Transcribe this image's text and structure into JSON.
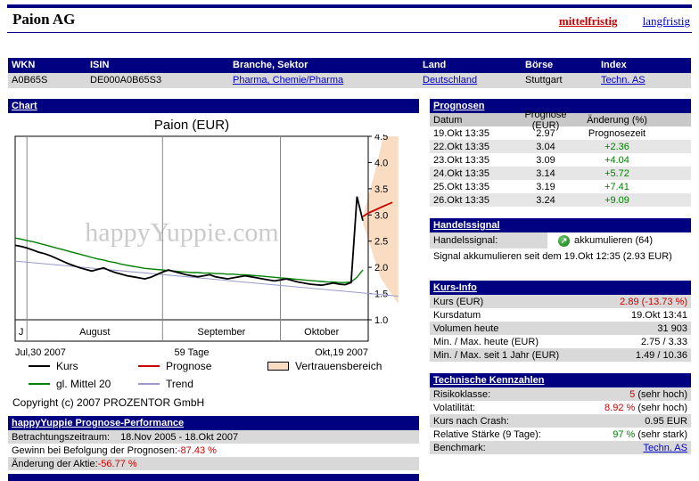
{
  "header": {
    "title": "Paion AG",
    "nav": [
      {
        "label": "mittelfristig",
        "active": true
      },
      {
        "label": "langfristig",
        "active": false
      }
    ]
  },
  "info_table": {
    "headers": [
      "WKN",
      "ISIN",
      "Branche, Sektor",
      "Land",
      "Börse",
      "Index"
    ],
    "values": [
      {
        "text": "A0B65S",
        "link": false
      },
      {
        "text": "DE000A0B65S3",
        "link": false
      },
      {
        "text": "Pharma, Chemie/Pharma",
        "link": true
      },
      {
        "text": "Deutschland",
        "link": true
      },
      {
        "text": "Stuttgart",
        "link": false
      },
      {
        "text": "Techn. AS",
        "link": true
      }
    ]
  },
  "chart_section": {
    "header": "Chart",
    "watermark": "happyYuppie.com",
    "copyright": "Copyright (c) 2007 PROZENTOR GmbH",
    "legend": [
      {
        "name": "Kurs",
        "type": "line",
        "color": "#000000"
      },
      {
        "name": "Prognose",
        "type": "line",
        "color": "#cc0000"
      },
      {
        "name": "Vertrauensbereich",
        "type": "box",
        "color": "#f9dcc2"
      },
      {
        "name": "gl. Mittel 20",
        "type": "line",
        "color": "#008000"
      },
      {
        "name": "Trend",
        "type": "line",
        "color": "#9999cc"
      }
    ]
  },
  "chart_data": {
    "type": "line",
    "title": "Paion (EUR)",
    "ylim": [
      1.0,
      4.5
    ],
    "yticks": [
      4.5,
      4.0,
      3.5,
      3.0,
      2.5,
      2.0,
      1.5,
      1.0
    ],
    "x_axis": {
      "start_label": "Jul,30 2007",
      "span_label": "59 Tage",
      "end_label": "Okt,19 2007",
      "visible_days": 59,
      "total_days": 65,
      "months": [
        {
          "label": "J",
          "start": 0,
          "end": 2
        },
        {
          "label": "August",
          "start": 2,
          "end": 25
        },
        {
          "label": "September",
          "start": 25,
          "end": 45
        },
        {
          "label": "Oktober",
          "start": 45,
          "end": 59
        }
      ]
    },
    "series": [
      {
        "name": "Trend",
        "color": "#9999cc",
        "width": 1,
        "x": [
          0,
          65
        ],
        "values": [
          2.12,
          1.45
        ]
      },
      {
        "name": "gl. Mittel 20",
        "color": "#008000",
        "width": 1.4,
        "values": [
          2.56,
          2.54,
          2.51,
          2.49,
          2.46,
          2.43,
          2.4,
          2.37,
          2.34,
          2.31,
          2.28,
          2.25,
          2.22,
          2.19,
          2.16,
          2.14,
          2.11,
          2.09,
          2.06,
          2.04,
          2.02,
          2.0,
          1.98,
          1.97,
          1.96,
          1.95,
          1.94,
          1.93,
          1.92,
          1.91,
          1.9,
          1.9,
          1.89,
          1.89,
          1.88,
          1.88,
          1.87,
          1.87,
          1.86,
          1.86,
          1.85,
          1.84,
          1.83,
          1.82,
          1.81,
          1.8,
          1.79,
          1.78,
          1.77,
          1.76,
          1.75,
          1.74,
          1.73,
          1.72,
          1.72,
          1.71,
          1.71,
          1.72,
          1.81,
          1.95
        ]
      },
      {
        "name": "Kurs",
        "color": "#000000",
        "width": 1.8,
        "values": [
          2.42,
          2.4,
          2.37,
          2.33,
          2.29,
          2.26,
          2.22,
          2.17,
          2.12,
          2.07,
          2.03,
          1.99,
          1.96,
          1.93,
          1.96,
          1.99,
          1.94,
          1.9,
          1.87,
          1.84,
          1.82,
          1.8,
          1.78,
          1.81,
          1.86,
          1.91,
          1.95,
          1.92,
          1.89,
          1.86,
          1.84,
          1.82,
          1.84,
          1.86,
          1.82,
          1.8,
          1.78,
          1.8,
          1.82,
          1.84,
          1.82,
          1.8,
          1.78,
          1.76,
          1.74,
          1.76,
          1.78,
          1.75,
          1.72,
          1.7,
          1.68,
          1.67,
          1.66,
          1.68,
          1.7,
          1.68,
          1.67,
          1.71,
          3.35,
          2.89
        ]
      },
      {
        "name": "Prognose",
        "color": "#cc0000",
        "width": 1.8,
        "x": [
          59,
          60,
          61,
          62,
          63,
          64
        ],
        "values": [
          2.97,
          3.04,
          3.09,
          3.14,
          3.19,
          3.24
        ]
      }
    ],
    "confidence_band": {
      "name": "Vertrauensbereich",
      "color": "#f9dcc2",
      "polygon": [
        [
          59,
          2.97
        ],
        [
          61,
          3.8
        ],
        [
          62.5,
          4.5
        ],
        [
          65,
          4.5
        ],
        [
          65,
          1.3
        ],
        [
          62,
          1.8
        ],
        [
          59,
          2.85
        ]
      ]
    }
  },
  "prognosen": {
    "header": "Prognosen",
    "columns": [
      "Datum",
      "Prognose (EUR)",
      "Änderung (%)"
    ],
    "rows": [
      {
        "datum": "19.Okt 13:35",
        "prognose": "2.97",
        "aenderung": "Prognosezeit",
        "positive": false
      },
      {
        "datum": "22.Okt 13:35",
        "prognose": "3.04",
        "aenderung": "+2.36",
        "positive": true
      },
      {
        "datum": "23.Okt 13:35",
        "prognose": "3.09",
        "aenderung": "+4.04",
        "positive": true
      },
      {
        "datum": "24.Okt 13:35",
        "prognose": "3.14",
        "aenderung": "+5.72",
        "positive": true
      },
      {
        "datum": "25.Okt 13:35",
        "prognose": "3.19",
        "aenderung": "+7.41",
        "positive": true
      },
      {
        "datum": "26.Okt 13:35",
        "prognose": "3.24",
        "aenderung": "+9.09",
        "positive": true
      }
    ]
  },
  "handelssignal": {
    "header": "Handelssignal",
    "label": "Handelssignal:",
    "icon_glyph": "↗",
    "signal": "akkumulieren (64)",
    "since": "Signal akkumulieren seit dem 19.Okt 12:35 (2.93 EUR)"
  },
  "kurs_info": {
    "header": "Kurs-Info",
    "rows": [
      {
        "label": "Kurs (EUR)",
        "value": "2.89 (-13.73 %)",
        "color": "neg"
      },
      {
        "label": "Kursdatum",
        "value": "19.Okt 13:41",
        "color": ""
      },
      {
        "label": "Volumen heute",
        "value": "31 903",
        "color": ""
      },
      {
        "label": "Min. / Max. heute (EUR)",
        "value": "2.75 / 3.33",
        "color": ""
      },
      {
        "label": "Min. / Max. seit 1 Jahr (EUR)",
        "value": "1.49 / 10.36",
        "color": ""
      }
    ]
  },
  "kennzahlen": {
    "header": "Technische Kennzahlen",
    "rows": [
      {
        "label": "Risikoklasse:",
        "parts": [
          {
            "text": "5",
            "color": "neg"
          },
          {
            "text": " (sehr hoch)",
            "color": ""
          }
        ]
      },
      {
        "label": "Volatilität:",
        "parts": [
          {
            "text": "8.92 %",
            "color": "neg"
          },
          {
            "text": " (sehr hoch)",
            "color": ""
          }
        ]
      },
      {
        "label": "Kurs nach Crash:",
        "parts": [
          {
            "text": "0.95 EUR",
            "color": ""
          }
        ]
      },
      {
        "label": "Relative Stärke (9 Tage):",
        "parts": [
          {
            "text": "97 %",
            "color": "pos"
          },
          {
            "text": " (sehr stark)",
            "color": ""
          }
        ]
      },
      {
        "label": "Benchmark:",
        "parts": [
          {
            "text": "Techn. AS",
            "color": "link"
          }
        ]
      }
    ]
  },
  "performance": {
    "header": "happyYuppie Prognose-Performance",
    "rows": [
      {
        "label": "Betrachtungszeitraum:",
        "value": "18.Nov 2005 - 18.Okt 2007",
        "color": "",
        "align": "left"
      },
      {
        "label": "Gewinn bei Befolgung der Prognosen:",
        "value": "-87.43 %",
        "color": "neg",
        "align": "right"
      },
      {
        "label": "Änderung der Aktie:",
        "value": "-56.77 %",
        "color": "neg",
        "align": "right"
      }
    ]
  },
  "colors": {
    "navy": "#000080",
    "row_gray": "#d9d9d9",
    "negative": "#cc0000",
    "positive": "#008000",
    "link_blue": "#0000cc",
    "confidence_band": "#f9dcc2"
  }
}
